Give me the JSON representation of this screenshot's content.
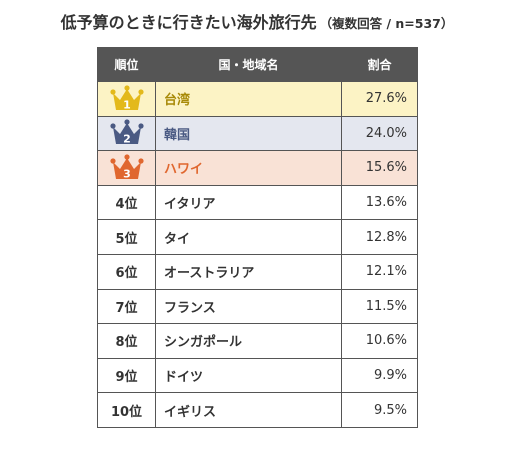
{
  "title": "低予算のときに行きたい海外旅行先",
  "subtitle": "（複数回答 / n=537）",
  "colors": {
    "header_bg": "#555555",
    "gold": "#e3b91b",
    "navy": "#4a5a83",
    "bronze": "#e0672f",
    "gold_row": "#fcf3c5",
    "navy_row": "#e4e7ef",
    "bronze_row": "#f9e2d6"
  },
  "chart_data": {
    "type": "table",
    "columns": [
      "順位",
      "国・地域名",
      "割合"
    ],
    "rows": [
      {
        "rank": 1,
        "rank_label": "1",
        "country": "台湾",
        "value": "27.6%",
        "medal": "gold"
      },
      {
        "rank": 2,
        "rank_label": "2",
        "country": "韓国",
        "value": "24.0%",
        "medal": "navy"
      },
      {
        "rank": 3,
        "rank_label": "3",
        "country": "ハワイ",
        "value": "15.6%",
        "medal": "bronze"
      },
      {
        "rank": 4,
        "rank_label": "4位",
        "country": "イタリア",
        "value": "13.6%"
      },
      {
        "rank": 5,
        "rank_label": "5位",
        "country": "タイ",
        "value": "12.8%"
      },
      {
        "rank": 6,
        "rank_label": "6位",
        "country": "オーストラリア",
        "value": "12.1%"
      },
      {
        "rank": 7,
        "rank_label": "7位",
        "country": "フランス",
        "value": "11.5%"
      },
      {
        "rank": 8,
        "rank_label": "8位",
        "country": "シンガポール",
        "value": "10.6%"
      },
      {
        "rank": 9,
        "rank_label": "9位",
        "country": "ドイツ",
        "value": "9.9%"
      },
      {
        "rank": 10,
        "rank_label": "10位",
        "country": "イギリス",
        "value": "9.5%"
      }
    ]
  }
}
